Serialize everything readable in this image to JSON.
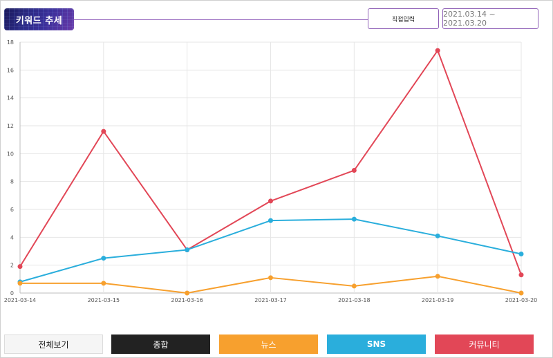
{
  "header": {
    "title": "키워드 추세",
    "direct_input_label": "직접입력",
    "date_range": "2021.03.14 ~ 2021.03.20"
  },
  "filters": [
    {
      "label": "전체보기"
    },
    {
      "label": "종합"
    },
    {
      "label": "뉴스"
    },
    {
      "label": "SNS"
    },
    {
      "label": "커뮤니티"
    }
  ],
  "colors": {
    "news": "#f7a02e",
    "sns": "#2aaedc",
    "community": "#e24757"
  },
  "chart_data": {
    "type": "line",
    "categories": [
      "2021-03-14",
      "2021-03-15",
      "2021-03-16",
      "2021-03-17",
      "2021-03-18",
      "2021-03-19",
      "2021-03-20"
    ],
    "ylim": [
      0,
      18
    ],
    "yticks": [
      0,
      2,
      4,
      6,
      8,
      10,
      12,
      14,
      16,
      18
    ],
    "grid": true,
    "series": [
      {
        "key": "community",
        "color": "#e24757",
        "values": [
          1.9,
          11.6,
          3.1,
          6.6,
          8.8,
          17.4,
          1.3
        ]
      },
      {
        "key": "sns",
        "color": "#2aaedc",
        "values": [
          0.8,
          2.5,
          3.1,
          5.2,
          5.3,
          4.1,
          2.8
        ]
      },
      {
        "key": "news",
        "color": "#f7a02e",
        "values": [
          0.7,
          0.7,
          0.0,
          1.1,
          0.5,
          1.2,
          0.0
        ]
      }
    ]
  }
}
